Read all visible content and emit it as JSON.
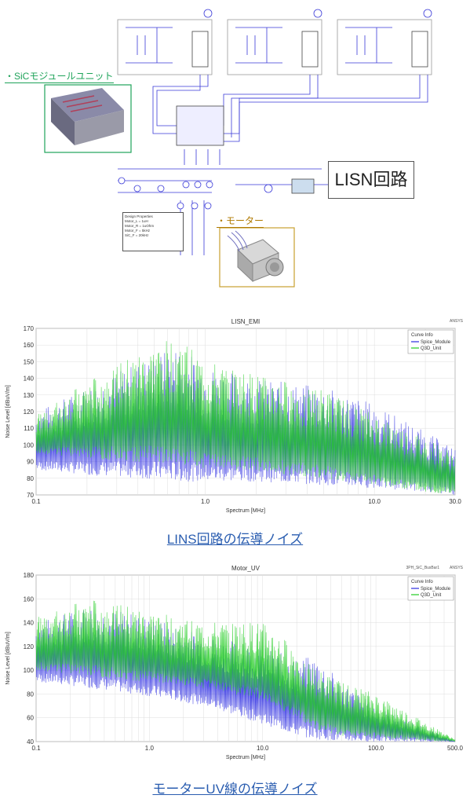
{
  "schematic": {
    "sic_label": "・SiCモジュールユニット",
    "motor_label": "・モーター",
    "lisn_label": "LISN回路",
    "design_properties": {
      "title": "Design Properties",
      "lines": [
        "Motor_L = 1uH",
        "Motor_R = 1uOhm",
        "Motor_F = 5kHz",
        "SiC_F = 20kHz"
      ]
    }
  },
  "chart_data": [
    {
      "type": "line",
      "title": "LISN_EMI",
      "xlabel": "Spectrum [MHz]",
      "ylabel": "Noise Level [dBuV/m]",
      "x_scale": "log",
      "xlim": [
        0.1,
        30.0
      ],
      "ylim": [
        70,
        170
      ],
      "x_ticks": [
        "0.1",
        "1.0",
        "10.0",
        "30.0"
      ],
      "y_ticks": [
        70,
        80,
        90,
        100,
        110,
        120,
        130,
        140,
        150,
        160,
        170
      ],
      "brand": "ANSYS",
      "legend_title": "Curve Info",
      "legend_position": "top-right",
      "series": [
        {
          "name": "Spice_Module",
          "color": "#2a2ae0",
          "x": [
            0.1,
            0.2,
            0.4,
            0.7,
            1.0,
            2.0,
            5.0,
            10.0,
            20.0,
            30.0
          ],
          "peak": [
            120,
            135,
            150,
            160,
            148,
            140,
            135,
            125,
            108,
            98
          ],
          "floor": [
            85,
            82,
            80,
            78,
            78,
            78,
            76,
            74,
            72,
            70
          ]
        },
        {
          "name": "Q3D_Unit",
          "color": "#22cc22",
          "x": [
            0.1,
            0.2,
            0.4,
            0.7,
            1.0,
            2.0,
            5.0,
            10.0,
            20.0,
            30.0
          ],
          "peak": [
            118,
            138,
            155,
            166,
            150,
            142,
            133,
            118,
            104,
            95
          ],
          "floor": [
            95,
            92,
            90,
            88,
            86,
            84,
            80,
            76,
            72,
            70
          ]
        }
      ]
    },
    {
      "type": "line",
      "title": "Motor_UV",
      "xlabel": "Spectrum [MHz]",
      "ylabel": "Noise Level [dBuV/m]",
      "x_scale": "log",
      "xlim": [
        0.1,
        500.0
      ],
      "ylim": [
        40,
        180
      ],
      "x_ticks": [
        "0.1",
        "1.0",
        "10.0",
        "100.0",
        "500.0"
      ],
      "y_ticks": [
        40,
        60,
        80,
        100,
        120,
        140,
        160,
        180
      ],
      "brand": "ANSYS",
      "subtitle": "3PH_SiC_BusBar1",
      "legend_title": "Curve Info",
      "legend_position": "top-right",
      "series": [
        {
          "name": "Spice_Module",
          "color": "#2a2ae0",
          "x": [
            0.1,
            0.3,
            1.0,
            3.0,
            10.0,
            20.0,
            30.0,
            50.0,
            100.0,
            500.0
          ],
          "peak": [
            140,
            155,
            145,
            130,
            120,
            110,
            112,
            90,
            70,
            40
          ],
          "floor": [
            90,
            85,
            78,
            70,
            55,
            45,
            42,
            40,
            40,
            40
          ]
        },
        {
          "name": "Q3D_Unit",
          "color": "#22cc22",
          "x": [
            0.1,
            0.3,
            1.0,
            3.0,
            10.0,
            20.0,
            30.0,
            50.0,
            100.0,
            500.0
          ],
          "peak": [
            145,
            160,
            150,
            140,
            140,
            118,
            100,
            90,
            80,
            42
          ],
          "floor": [
            100,
            95,
            90,
            85,
            75,
            60,
            50,
            45,
            42,
            40
          ]
        }
      ]
    }
  ],
  "captions": {
    "chart1": "LINS回路の伝導ノイズ",
    "chart2": "モーターUV線の伝導ノイズ"
  }
}
